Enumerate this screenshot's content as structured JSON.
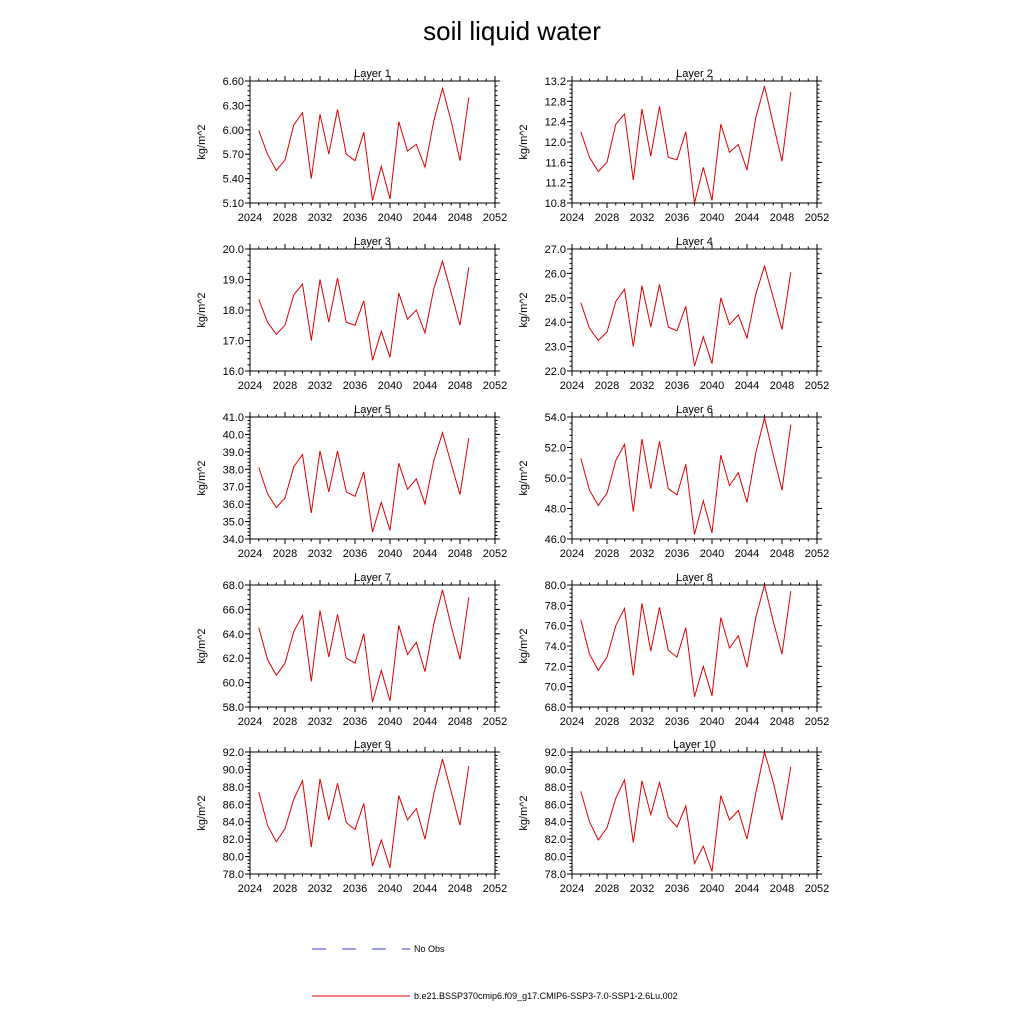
{
  "figure": {
    "title": "soil liquid water"
  },
  "legend": [
    {
      "label": "No Obs",
      "color": "#3b3bd6",
      "dash": "dashed"
    },
    {
      "label": "b.e21.BSSP370cmip6.f09_g17.CMIP6-SSP3-7.0-SSP1-2.6Lu.002",
      "color": "#e00000",
      "dash": "solid"
    }
  ],
  "chart_data": [
    {
      "type": "line",
      "title": "Layer 1",
      "ylabel": "kg/m^2",
      "xlim": [
        2024,
        2052
      ],
      "xticks": [
        "2024",
        "2028",
        "2032",
        "2036",
        "2040",
        "2044",
        "2048",
        "2052"
      ],
      "ylim": [
        5.1,
        6.6
      ],
      "yticks": [
        "5.10",
        "5.40",
        "5.70",
        "6.00",
        "6.30",
        "6.60"
      ],
      "series": [
        {
          "color": "#e00000",
          "x": [
            2025,
            2026,
            2027,
            2028,
            2029,
            2030,
            2031,
            2032,
            2033,
            2034,
            2035,
            2036,
            2037,
            2038,
            2039,
            2040,
            2041,
            2042,
            2043,
            2044,
            2045,
            2046,
            2047,
            2048,
            2049
          ],
          "y": [
            5.99,
            5.7,
            5.5,
            5.63,
            6.06,
            6.21,
            5.4,
            6.19,
            5.7,
            6.25,
            5.7,
            5.62,
            5.97,
            5.13,
            5.55,
            5.15,
            6.1,
            5.74,
            5.82,
            5.54,
            6.11,
            6.51,
            6.1,
            5.62,
            6.4
          ]
        }
      ]
    },
    {
      "type": "line",
      "title": "Layer 2",
      "ylabel": "kg/m^2",
      "xlim": [
        2024,
        2052
      ],
      "xticks": [
        "2024",
        "2028",
        "2032",
        "2036",
        "2040",
        "2044",
        "2048",
        "2052"
      ],
      "ylim": [
        10.8,
        13.2
      ],
      "yticks": [
        "10.8",
        "11.2",
        "11.6",
        "12.0",
        "12.4",
        "12.8",
        "13.2"
      ],
      "series": [
        {
          "color": "#e00000",
          "x": [
            2025,
            2026,
            2027,
            2028,
            2029,
            2030,
            2031,
            2032,
            2033,
            2034,
            2035,
            2036,
            2037,
            2038,
            2039,
            2040,
            2041,
            2042,
            2043,
            2044,
            2045,
            2046,
            2047,
            2048,
            2049
          ],
          "y": [
            12.2,
            11.7,
            11.42,
            11.6,
            12.35,
            12.55,
            11.25,
            12.65,
            11.72,
            12.7,
            11.7,
            11.65,
            12.2,
            10.8,
            11.5,
            10.85,
            12.35,
            11.8,
            11.95,
            11.45,
            12.48,
            13.1,
            12.35,
            11.62,
            12.98
          ]
        }
      ]
    },
    {
      "type": "line",
      "title": "Layer 3",
      "ylabel": "kg/m^2",
      "xlim": [
        2024,
        2052
      ],
      "xticks": [
        "2024",
        "2028",
        "2032",
        "2036",
        "2040",
        "2044",
        "2048",
        "2052"
      ],
      "ylim": [
        16.0,
        20.0
      ],
      "yticks": [
        "16.0",
        "17.0",
        "18.0",
        "19.0",
        "20.0"
      ],
      "series": [
        {
          "color": "#e00000",
          "x": [
            2025,
            2026,
            2027,
            2028,
            2029,
            2030,
            2031,
            2032,
            2033,
            2034,
            2035,
            2036,
            2037,
            2038,
            2039,
            2040,
            2041,
            2042,
            2043,
            2044,
            2045,
            2046,
            2047,
            2048,
            2049
          ],
          "y": [
            18.35,
            17.6,
            17.2,
            17.5,
            18.5,
            18.85,
            17.0,
            19.0,
            17.6,
            19.05,
            17.6,
            17.5,
            18.3,
            16.35,
            17.3,
            16.45,
            18.55,
            17.7,
            18.0,
            17.25,
            18.7,
            19.6,
            18.55,
            17.5,
            19.4
          ]
        }
      ]
    },
    {
      "type": "line",
      "title": "Layer 4",
      "ylabel": "kg/m^2",
      "xlim": [
        2024,
        2052
      ],
      "xticks": [
        "2024",
        "2028",
        "2032",
        "2036",
        "2040",
        "2044",
        "2048",
        "2052"
      ],
      "ylim": [
        22.0,
        27.0
      ],
      "yticks": [
        "22.0",
        "23.0",
        "24.0",
        "25.0",
        "26.0",
        "27.0"
      ],
      "series": [
        {
          "color": "#e00000",
          "x": [
            2025,
            2026,
            2027,
            2028,
            2029,
            2030,
            2031,
            2032,
            2033,
            2034,
            2035,
            2036,
            2037,
            2038,
            2039,
            2040,
            2041,
            2042,
            2043,
            2044,
            2045,
            2046,
            2047,
            2048,
            2049
          ],
          "y": [
            24.8,
            23.75,
            23.25,
            23.6,
            24.85,
            25.35,
            23.0,
            25.5,
            23.8,
            25.55,
            23.8,
            23.65,
            24.65,
            22.2,
            23.4,
            22.3,
            25.0,
            23.9,
            24.3,
            23.35,
            25.15,
            26.3,
            25.0,
            23.7,
            26.05
          ]
        }
      ]
    },
    {
      "type": "line",
      "title": "Layer 5",
      "ylabel": "kg/m^2",
      "xlim": [
        2024,
        2052
      ],
      "xticks": [
        "2024",
        "2028",
        "2032",
        "2036",
        "2040",
        "2044",
        "2048",
        "2052"
      ],
      "ylim": [
        34.0,
        41.0
      ],
      "yticks": [
        "34.0",
        "35.0",
        "36.0",
        "37.0",
        "38.0",
        "39.0",
        "40.0",
        "41.0"
      ],
      "series": [
        {
          "color": "#e00000",
          "x": [
            2025,
            2026,
            2027,
            2028,
            2029,
            2030,
            2031,
            2032,
            2033,
            2034,
            2035,
            2036,
            2037,
            2038,
            2039,
            2040,
            2041,
            2042,
            2043,
            2044,
            2045,
            2046,
            2047,
            2048,
            2049
          ],
          "y": [
            38.1,
            36.6,
            35.8,
            36.35,
            38.15,
            38.85,
            35.5,
            39.05,
            36.7,
            39.05,
            36.7,
            36.45,
            37.85,
            34.4,
            36.1,
            34.5,
            38.35,
            36.85,
            37.45,
            36.0,
            38.5,
            40.1,
            38.3,
            36.55,
            39.8
          ]
        }
      ]
    },
    {
      "type": "line",
      "title": "Layer 6",
      "ylabel": "kg/m^2",
      "xlim": [
        2024,
        2052
      ],
      "xticks": [
        "2024",
        "2028",
        "2032",
        "2036",
        "2040",
        "2044",
        "2048",
        "2052"
      ],
      "ylim": [
        46.0,
        54.0
      ],
      "yticks": [
        "46.0",
        "48.0",
        "50.0",
        "52.0",
        "54.0"
      ],
      "series": [
        {
          "color": "#e00000",
          "x": [
            2025,
            2026,
            2027,
            2028,
            2029,
            2030,
            2031,
            2032,
            2033,
            2034,
            2035,
            2036,
            2037,
            2038,
            2039,
            2040,
            2041,
            2042,
            2043,
            2044,
            2045,
            2046,
            2047,
            2048,
            2049
          ],
          "y": [
            51.3,
            49.2,
            48.2,
            49.0,
            51.15,
            52.2,
            47.8,
            52.55,
            49.3,
            52.4,
            49.3,
            48.9,
            50.9,
            46.3,
            48.5,
            46.4,
            51.5,
            49.5,
            50.35,
            48.4,
            51.65,
            53.95,
            51.5,
            49.2,
            53.5
          ]
        }
      ]
    },
    {
      "type": "line",
      "title": "Layer 7",
      "ylabel": "kg/m^2",
      "xlim": [
        2024,
        2052
      ],
      "xticks": [
        "2024",
        "2028",
        "2032",
        "2036",
        "2040",
        "2044",
        "2048",
        "2052"
      ],
      "ylim": [
        58.0,
        68.0
      ],
      "yticks": [
        "58.0",
        "60.0",
        "62.0",
        "64.0",
        "66.0",
        "68.0"
      ],
      "series": [
        {
          "color": "#e00000",
          "x": [
            2025,
            2026,
            2027,
            2028,
            2029,
            2030,
            2031,
            2032,
            2033,
            2034,
            2035,
            2036,
            2037,
            2038,
            2039,
            2040,
            2041,
            2042,
            2043,
            2044,
            2045,
            2046,
            2047,
            2048,
            2049
          ],
          "y": [
            64.5,
            61.9,
            60.6,
            61.6,
            64.2,
            65.5,
            60.1,
            65.9,
            62.1,
            65.6,
            62.0,
            61.6,
            64.0,
            58.4,
            61.0,
            58.5,
            64.7,
            62.3,
            63.3,
            60.9,
            64.8,
            67.6,
            64.6,
            61.9,
            67.0
          ]
        }
      ]
    },
    {
      "type": "line",
      "title": "Layer 8",
      "ylabel": "kg/m^2",
      "xlim": [
        2024,
        2052
      ],
      "xticks": [
        "2024",
        "2028",
        "2032",
        "2036",
        "2040",
        "2044",
        "2048",
        "2052"
      ],
      "ylim": [
        68.0,
        80.0
      ],
      "yticks": [
        "68.0",
        "70.0",
        "72.0",
        "74.0",
        "76.0",
        "78.0",
        "80.0"
      ],
      "series": [
        {
          "color": "#e00000",
          "x": [
            2025,
            2026,
            2027,
            2028,
            2029,
            2030,
            2031,
            2032,
            2033,
            2034,
            2035,
            2036,
            2037,
            2038,
            2039,
            2040,
            2041,
            2042,
            2043,
            2044,
            2045,
            2046,
            2047,
            2048,
            2049
          ],
          "y": [
            76.6,
            73.2,
            71.6,
            72.9,
            76.0,
            77.7,
            71.1,
            78.2,
            73.5,
            77.8,
            73.6,
            72.9,
            75.8,
            69.0,
            72.0,
            69.1,
            76.8,
            73.8,
            75.0,
            71.9,
            76.8,
            80.0,
            76.4,
            73.2,
            79.4
          ]
        }
      ]
    },
    {
      "type": "line",
      "title": "Layer 9",
      "ylabel": "kg/m^2",
      "xlim": [
        2024,
        2052
      ],
      "xticks": [
        "2024",
        "2028",
        "2032",
        "2036",
        "2040",
        "2044",
        "2048",
        "2052"
      ],
      "ylim": [
        78.0,
        92.0
      ],
      "yticks": [
        "78.0",
        "80.0",
        "82.0",
        "84.0",
        "86.0",
        "88.0",
        "90.0",
        "92.0"
      ],
      "series": [
        {
          "color": "#e00000",
          "x": [
            2025,
            2026,
            2027,
            2028,
            2029,
            2030,
            2031,
            2032,
            2033,
            2034,
            2035,
            2036,
            2037,
            2038,
            2039,
            2040,
            2041,
            2042,
            2043,
            2044,
            2045,
            2046,
            2047,
            2048,
            2049
          ],
          "y": [
            87.4,
            83.6,
            81.7,
            83.2,
            86.6,
            88.7,
            81.1,
            88.9,
            84.2,
            88.4,
            83.9,
            83.1,
            86.1,
            78.9,
            81.9,
            78.7,
            87.0,
            84.2,
            85.5,
            82.0,
            87.2,
            91.2,
            87.4,
            83.6,
            90.4
          ]
        }
      ]
    },
    {
      "type": "line",
      "title": "Layer 10",
      "ylabel": "kg/m^2",
      "xlim": [
        2024,
        2052
      ],
      "xticks": [
        "2024",
        "2028",
        "2032",
        "2036",
        "2040",
        "2044",
        "2048",
        "2052"
      ],
      "ylim": [
        78.0,
        92.0
      ],
      "yticks": [
        "78.0",
        "80.0",
        "82.0",
        "84.0",
        "86.0",
        "88.0",
        "90.0",
        "92.0"
      ],
      "series": [
        {
          "color": "#e00000",
          "x": [
            2025,
            2026,
            2027,
            2028,
            2029,
            2030,
            2031,
            2032,
            2033,
            2034,
            2035,
            2036,
            2037,
            2038,
            2039,
            2040,
            2041,
            2042,
            2043,
            2044,
            2045,
            2046,
            2047,
            2048,
            2049
          ],
          "y": [
            87.5,
            84.0,
            81.9,
            83.3,
            86.7,
            88.8,
            81.6,
            88.7,
            84.8,
            88.5,
            84.5,
            83.4,
            85.8,
            79.2,
            81.2,
            78.3,
            87.0,
            84.2,
            85.3,
            82.0,
            87.3,
            92.0,
            88.5,
            84.2,
            90.3
          ]
        }
      ]
    }
  ]
}
